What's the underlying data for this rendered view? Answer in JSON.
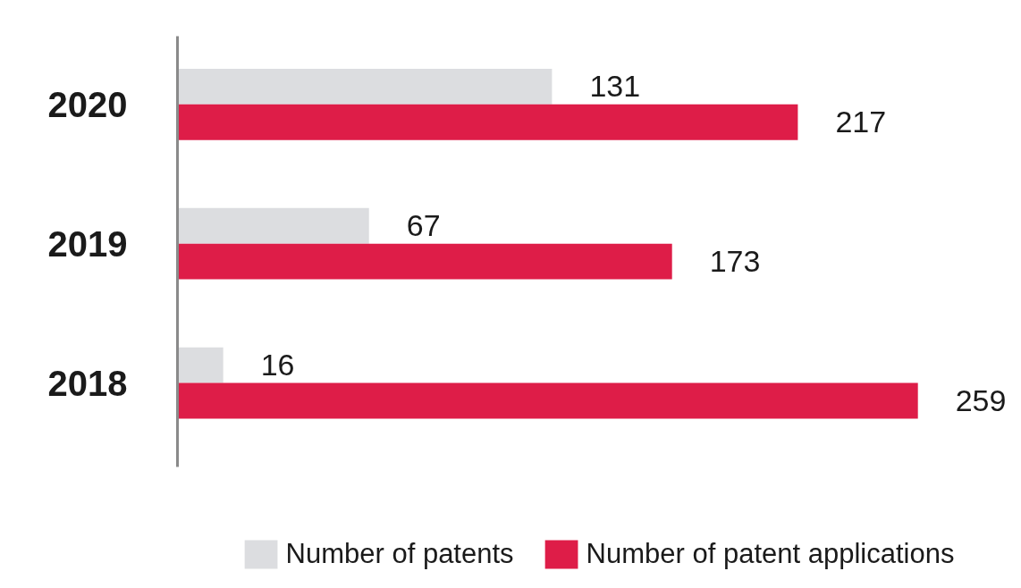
{
  "chart_data": {
    "type": "bar",
    "orientation": "horizontal",
    "categories": [
      "2020",
      "2019",
      "2018"
    ],
    "series": [
      {
        "name": "Number of patents",
        "color": "#dcdde0",
        "values": [
          131,
          67,
          16
        ]
      },
      {
        "name": "Number of patent applications",
        "color": "#de1d48",
        "values": [
          217,
          173,
          259
        ]
      }
    ],
    "data_labels": true,
    "tick_labels": "y",
    "grid": false,
    "legend": "bottom"
  }
}
